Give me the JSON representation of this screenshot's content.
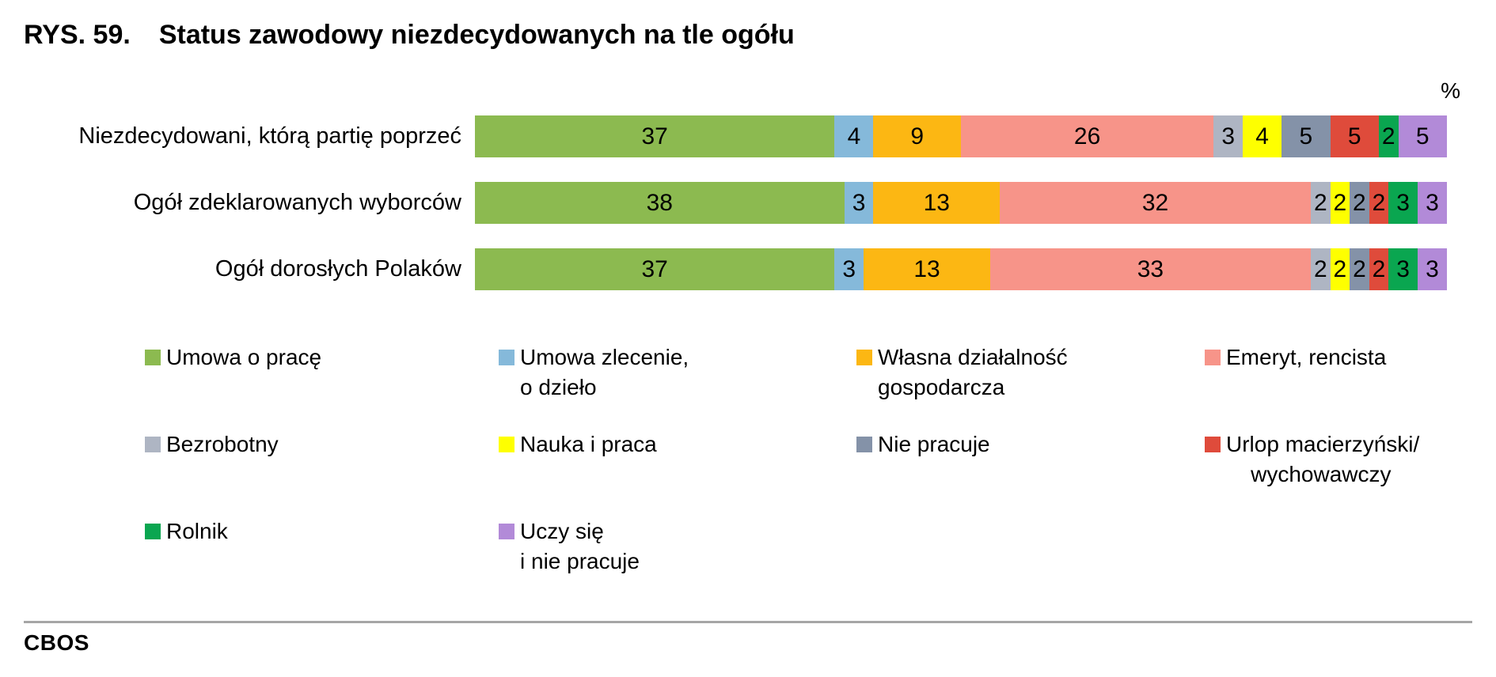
{
  "header": {
    "figure_label": "RYS. 59.",
    "title": "Status zawodowy niezdecydowanych na tle ogółu"
  },
  "chart_data": {
    "type": "bar",
    "variant": "horizontal-stacked",
    "figure_label": "RYS. 59.",
    "title": "Status zawodowy niezdecydowanych na tle ogółu",
    "unit": "%",
    "xlim": [
      0,
      100
    ],
    "grid": false,
    "value_labels": "inside-center",
    "legend_position": "bottom",
    "categories": [
      "Umowa o pracę",
      "Umowa zlecenie, o dzieło",
      "Własna działalność gospodarcza",
      "Emeryt, rencista",
      "Bezrobotny",
      "Nauka i praca",
      "Nie pracuje",
      "Urlop macierzyński/wychowawczy",
      "Rolnik",
      "Uczy się i nie pracuje"
    ],
    "colors": [
      "#8cba50",
      "#85b9da",
      "#fcb713",
      "#f79489",
      "#aeb5c3",
      "#feff00",
      "#8492a8",
      "#df4b3b",
      "#0aa650",
      "#b28ad8"
    ],
    "bars": [
      {
        "label": "Niezdecydowani, którą partię poprzeć",
        "values": [
          37,
          4,
          9,
          26,
          3,
          4,
          5,
          5,
          2,
          5
        ]
      },
      {
        "label": "Ogół zdeklarowanych wyborców",
        "values": [
          38,
          3,
          13,
          32,
          2,
          2,
          2,
          2,
          3,
          3
        ]
      },
      {
        "label": "Ogół dorosłych Polaków",
        "values": [
          37,
          3,
          13,
          33,
          2,
          2,
          2,
          2,
          3,
          3
        ]
      }
    ]
  },
  "legend": {
    "items": [
      {
        "label": "Umowa o pracę",
        "color": "#8cba50"
      },
      {
        "label": "Umowa zlecenie,\no dzieło",
        "color": "#85b9da"
      },
      {
        "label": "Własna działalność\ngospodarcza",
        "color": "#fcb713"
      },
      {
        "label": "Emeryt, rencista",
        "color": "#f79489"
      },
      {
        "label": "Bezrobotny",
        "color": "#aeb5c3"
      },
      {
        "label": "Nauka i praca",
        "color": "#feff00"
      },
      {
        "label": "Nie pracuje",
        "color": "#8492a8"
      },
      {
        "label": "Urlop macierzyński/\n    wychowawczy",
        "color": "#df4b3b"
      },
      {
        "label": "Rolnik",
        "color": "#0aa650"
      },
      {
        "label": "Uczy się\ni nie pracuje",
        "color": "#b28ad8"
      }
    ]
  },
  "footer": {
    "brand": "CBOS"
  }
}
